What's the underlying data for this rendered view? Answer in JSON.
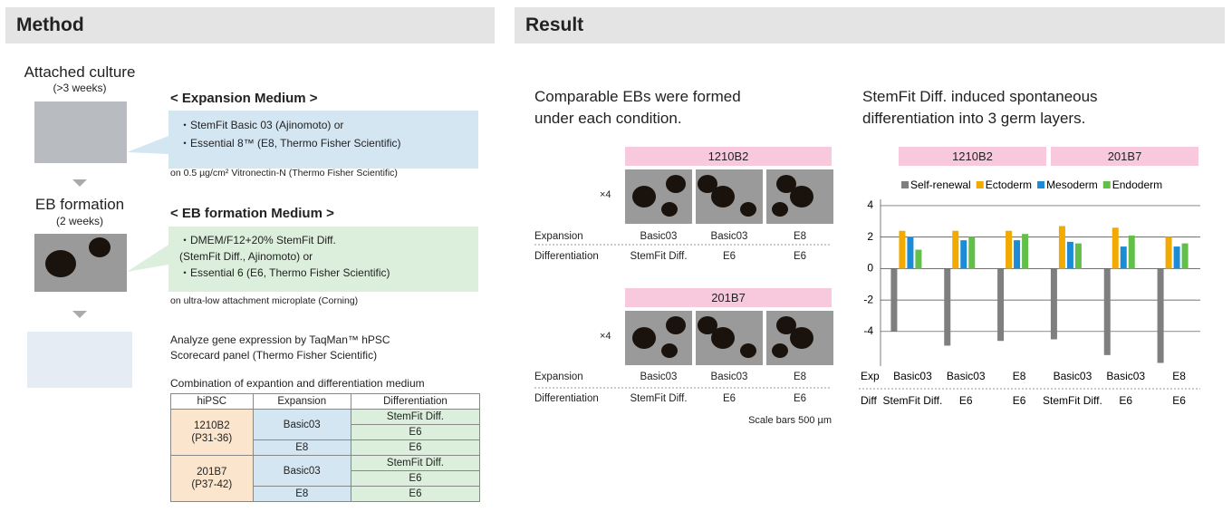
{
  "method": {
    "heading": "Method",
    "steps": [
      {
        "title": "Attached culture",
        "sub": "(>3 weeks)"
      },
      {
        "title": "EB formation",
        "sub": "(2 weeks)"
      }
    ],
    "expansion": {
      "title": "< Expansion Medium >",
      "items": [
        "・StemFit Basic 03 (Ajinomoto) or",
        "・Essential 8™ (E8, Thermo Fisher Scientific)"
      ],
      "note": "on 0.5 µg/cm²  Vitronectin-N (Thermo Fisher Scientific)"
    },
    "eb": {
      "title": "< EB formation Medium >",
      "items": [
        "・DMEM/F12+20% StemFit Diff.\n   (StemFit Diff., Ajinomoto) or",
        "・Essential 6 (E6, Thermo Fisher Scientific)"
      ],
      "note": "on ultra-low attachment microplate (Corning)"
    },
    "analyze": "Analyze gene expression by TaqMan™ hPSC\nScorecard panel (Thermo Fisher Scientific)",
    "table": {
      "caption": "Combination of expantion and differentiation medium",
      "header": [
        "hiPSC",
        "Expansion",
        "Differentiation"
      ],
      "rows": [
        {
          "hipsc": "1210B2\n(P31-36)",
          "groups": [
            {
              "expansion": "Basic03",
              "diff": [
                "StemFit Diff.",
                "E6"
              ]
            },
            {
              "expansion": "E8",
              "diff": [
                "E6"
              ]
            }
          ]
        },
        {
          "hipsc": "201B7\n(P37-42)",
          "groups": [
            {
              "expansion": "Basic03",
              "diff": [
                "StemFit Diff.",
                "E6"
              ]
            },
            {
              "expansion": "E8",
              "diff": [
                "E6"
              ]
            }
          ]
        }
      ]
    }
  },
  "result": {
    "heading": "Result",
    "ebs": {
      "caption": "Comparable EBs were formed\nunder each condition.",
      "magnification": "×4",
      "lines": [
        "1210B2",
        "201B7"
      ],
      "row_labels": [
        "Expansion",
        "Differentiation"
      ],
      "columns": [
        {
          "exp": "Basic03",
          "diff": "StemFit Diff."
        },
        {
          "exp": "Basic03",
          "diff": "E6"
        },
        {
          "exp": "E8",
          "diff": "E6"
        }
      ],
      "scale": "Scale bars 500 µm"
    },
    "chart": {
      "type": "bar",
      "caption": "StemFit Diff. induced spontaneous\ndifferentiation into 3 germ layers.",
      "groups": [
        "1210B2",
        "201B7"
      ],
      "row_labels": [
        "Exp",
        "Diff"
      ],
      "expansion": [
        "Basic03",
        "Basic03",
        "E8",
        "Basic03",
        "Basic03",
        "E8"
      ],
      "differentiation": [
        "StemFit Diff.",
        "E6",
        "E6",
        "StemFit Diff.",
        "E6",
        "E6"
      ],
      "series": [
        {
          "name": "Self-renewal",
          "color": "#7f7f7f",
          "values": [
            -4.0,
            -4.9,
            -4.6,
            -4.5,
            -5.5,
            -6.0
          ]
        },
        {
          "name": "Ectoderm",
          "color": "#f2a900",
          "values": [
            2.4,
            2.4,
            2.4,
            2.7,
            2.6,
            2.0
          ]
        },
        {
          "name": "Mesoderm",
          "color": "#1b8bd6",
          "values": [
            2.0,
            1.8,
            1.8,
            1.7,
            1.4,
            1.4
          ]
        },
        {
          "name": "Endoderm",
          "color": "#62bf4a",
          "values": [
            1.2,
            2.0,
            2.2,
            1.6,
            2.1,
            1.6
          ]
        }
      ],
      "ylim": [
        -6.2,
        4.4
      ],
      "yticks": [
        4,
        2,
        0,
        -2,
        -4
      ],
      "grid": true
    }
  }
}
